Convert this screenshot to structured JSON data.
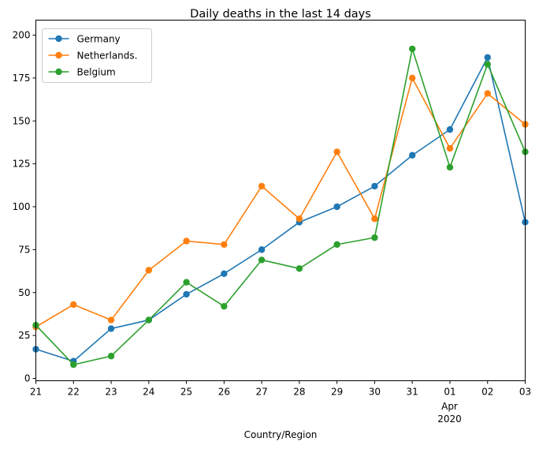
{
  "chart_data": {
    "type": "line",
    "title": "Daily deaths in the last 14 days",
    "xlabel": "Country/Region",
    "ylabel": "",
    "x": [
      "21",
      "22",
      "23",
      "24",
      "25",
      "26",
      "27",
      "28",
      "29",
      "30",
      "31",
      "01",
      "02",
      "03"
    ],
    "x_secondary_labels": {
      "month": "Apr",
      "year": "2020"
    },
    "ylim": [
      0,
      200
    ],
    "yticks": [
      0,
      25,
      50,
      75,
      100,
      125,
      150,
      175,
      200
    ],
    "grid": false,
    "legend_position": "top-left",
    "series": [
      {
        "name": "Germany",
        "color": "#1f77b4",
        "values": [
          17,
          10,
          29,
          34,
          49,
          61,
          75,
          91,
          100,
          112,
          130,
          145,
          187,
          91
        ]
      },
      {
        "name": "Netherlands.",
        "color": "#ff7f0e",
        "values": [
          30,
          43,
          34,
          63,
          80,
          78,
          112,
          93,
          132,
          93,
          175,
          134,
          166,
          148
        ]
      },
      {
        "name": "Belgium",
        "color": "#2ca02c",
        "values": [
          31,
          8,
          13,
          34,
          56,
          42,
          69,
          64,
          78,
          82,
          192,
          123,
          183,
          132
        ]
      }
    ]
  }
}
